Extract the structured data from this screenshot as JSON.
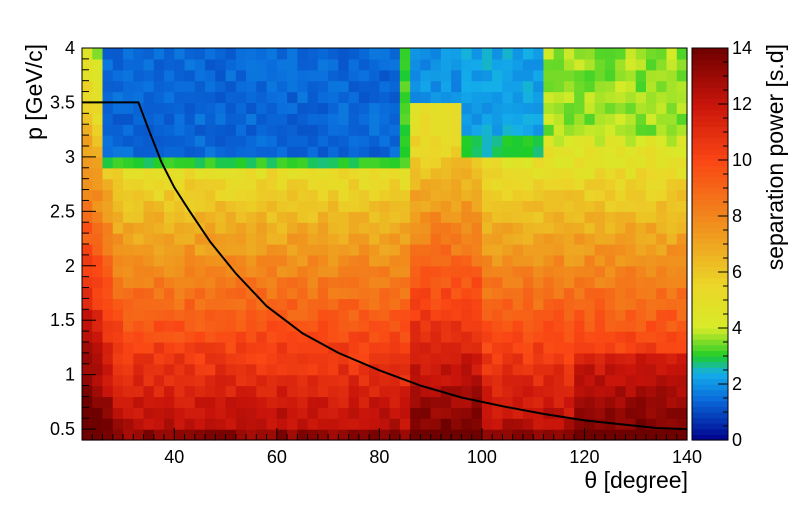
{
  "chart_data": {
    "type": "heatmap",
    "title": "",
    "xlabel": "θ [degree]",
    "ylabel": "p [GeV/c]",
    "xlim": [
      22,
      140
    ],
    "ylim": [
      0.4,
      4.0
    ],
    "x_ticks": [
      40,
      60,
      80,
      100,
      120,
      140
    ],
    "y_ticks": [
      0.5,
      1,
      1.5,
      2,
      2.5,
      3,
      3.5,
      4
    ],
    "colorbar": {
      "label": "separation power [s.d]",
      "range": [
        0,
        14
      ],
      "ticks": [
        0,
        2,
        4,
        6,
        8,
        10,
        12,
        14
      ],
      "palette": "rainbow (blue → cyan → green → yellow → orange → red → dark red)"
    },
    "heatmap_summary": {
      "x_bin_width": 2,
      "y_bin_width": 0.1,
      "low_values_region": "blue (~1–2 s.d) for theta 26–86 deg, p 2.9–4.0 GeV/c; cyan/blue pocket for theta 86–112 deg, p 2.9–4.0 GeV/c",
      "mid_values_region": "yellow (~4–6 s.d) for p 1.5–2.8 GeV/c",
      "high_values_region": "red/dark red (~10–14 s.d) near p 0.5–1.2 GeV/c, strongest at theta < 30 deg"
    },
    "series": [
      {
        "type": "line",
        "points": [
          [
            22,
            3.5
          ],
          [
            33,
            3.5
          ],
          [
            35,
            3.25
          ],
          [
            37.5,
            2.95
          ],
          [
            40,
            2.72
          ],
          [
            43,
            2.5
          ],
          [
            47,
            2.22
          ],
          [
            52,
            1.93
          ],
          [
            58,
            1.63
          ],
          [
            65,
            1.38
          ],
          [
            72,
            1.2
          ],
          [
            80,
            1.04
          ],
          [
            88,
            0.9
          ],
          [
            96,
            0.79
          ],
          [
            104,
            0.71
          ],
          [
            112,
            0.64
          ],
          [
            120,
            0.58
          ],
          [
            128,
            0.54
          ],
          [
            134,
            0.51
          ],
          [
            140,
            0.5
          ]
        ]
      }
    ]
  }
}
